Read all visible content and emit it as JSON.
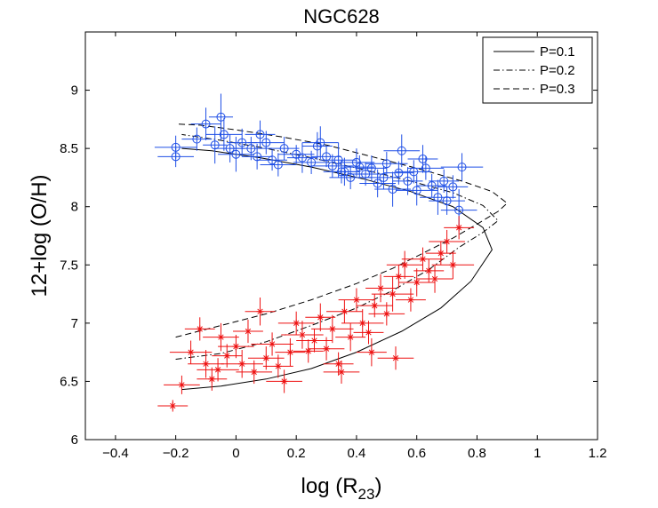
{
  "chart_data": {
    "type": "scatter",
    "title": "NGC628",
    "xlabel": "log (R",
    "xlabel_sub": "23",
    "xlabel_close": ")",
    "ylabel": "12+log (O/H)",
    "xlim": [
      -0.5,
      1.2
    ],
    "ylim": [
      6,
      9.5
    ],
    "xticks": [
      -0.4,
      -0.2,
      0,
      0.2,
      0.4,
      0.6,
      0.8,
      1,
      1.2
    ],
    "xtick_labels": [
      "−0.4",
      "−0.2",
      "0",
      "0.2",
      "0.4",
      "0.6",
      "0.8",
      "1",
      "1.2"
    ],
    "yticks": [
      6,
      6.5,
      7,
      7.5,
      8,
      8.5,
      9
    ],
    "ytick_labels": [
      "6",
      "6.5",
      "7",
      "7.5",
      "8",
      "8.5",
      "9"
    ],
    "grid": false,
    "legend_position": "top-right",
    "colors": {
      "upper": "#1f4fe6",
      "lower": "#ee1111",
      "model": "#000000"
    },
    "models": [
      {
        "name": "P=0.1",
        "dash": "solid",
        "points": [
          [
            -0.18,
            6.43
          ],
          [
            -0.05,
            6.46
          ],
          [
            0.1,
            6.52
          ],
          [
            0.25,
            6.61
          ],
          [
            0.4,
            6.75
          ],
          [
            0.55,
            6.93
          ],
          [
            0.68,
            7.13
          ],
          [
            0.78,
            7.36
          ],
          [
            0.85,
            7.63
          ],
          [
            0.82,
            7.82
          ],
          [
            0.72,
            8.0
          ],
          [
            0.58,
            8.13
          ],
          [
            0.42,
            8.24
          ],
          [
            0.25,
            8.34
          ],
          [
            0.08,
            8.42
          ],
          [
            -0.08,
            8.48
          ],
          [
            -0.18,
            8.5
          ]
        ]
      },
      {
        "name": "P=0.2",
        "dash": "dashdot",
        "points": [
          [
            -0.2,
            6.69
          ],
          [
            -0.05,
            6.74
          ],
          [
            0.1,
            6.84
          ],
          [
            0.25,
            6.98
          ],
          [
            0.4,
            7.13
          ],
          [
            0.52,
            7.28
          ],
          [
            0.64,
            7.46
          ],
          [
            0.74,
            7.65
          ],
          [
            0.82,
            7.78
          ],
          [
            0.87,
            7.88
          ],
          [
            0.82,
            8.01
          ],
          [
            0.72,
            8.12
          ],
          [
            0.58,
            8.22
          ],
          [
            0.42,
            8.32
          ],
          [
            0.25,
            8.42
          ],
          [
            0.1,
            8.5
          ],
          [
            -0.05,
            8.57
          ],
          [
            -0.18,
            8.62
          ]
        ]
      },
      {
        "name": "P=0.3",
        "dash": "dashed",
        "points": [
          [
            -0.2,
            6.88
          ],
          [
            -0.05,
            6.98
          ],
          [
            0.1,
            7.08
          ],
          [
            0.25,
            7.2
          ],
          [
            0.4,
            7.34
          ],
          [
            0.52,
            7.47
          ],
          [
            0.62,
            7.6
          ],
          [
            0.72,
            7.73
          ],
          [
            0.8,
            7.85
          ],
          [
            0.87,
            7.96
          ],
          [
            0.9,
            8.03
          ],
          [
            0.85,
            8.13
          ],
          [
            0.75,
            8.22
          ],
          [
            0.6,
            8.33
          ],
          [
            0.45,
            8.43
          ],
          [
            0.3,
            8.53
          ],
          [
            0.15,
            8.6
          ],
          [
            0.0,
            8.66
          ],
          [
            -0.12,
            8.7
          ],
          [
            -0.2,
            8.71
          ]
        ]
      }
    ],
    "upper_series": [
      [
        -0.2,
        8.43,
        0.06,
        0.09
      ],
      [
        -0.2,
        8.51,
        0.07,
        0.1
      ],
      [
        -0.13,
        8.58,
        0.05,
        0.1
      ],
      [
        -0.1,
        8.71,
        0.05,
        0.14
      ],
      [
        -0.07,
        8.53,
        0.04,
        0.16
      ],
      [
        -0.05,
        8.77,
        0.04,
        0.2
      ],
      [
        -0.04,
        8.62,
        0.06,
        0.14
      ],
      [
        -0.02,
        8.5,
        0.05,
        0.12
      ],
      [
        0.0,
        8.45,
        0.06,
        0.15
      ],
      [
        0.02,
        8.55,
        0.05,
        0.12
      ],
      [
        0.05,
        8.5,
        0.07,
        0.1
      ],
      [
        0.07,
        8.43,
        0.05,
        0.11
      ],
      [
        0.08,
        8.62,
        0.05,
        0.12
      ],
      [
        0.1,
        8.55,
        0.06,
        0.1
      ],
      [
        0.12,
        8.4,
        0.05,
        0.09
      ],
      [
        0.14,
        8.36,
        0.06,
        0.1
      ],
      [
        0.16,
        8.5,
        0.05,
        0.1
      ],
      [
        0.2,
        8.45,
        0.06,
        0.08
      ],
      [
        0.22,
        8.42,
        0.05,
        0.13
      ],
      [
        0.25,
        8.38,
        0.06,
        0.1
      ],
      [
        0.27,
        8.52,
        0.05,
        0.12
      ],
      [
        0.28,
        8.55,
        0.06,
        0.14
      ],
      [
        0.3,
        8.43,
        0.05,
        0.09
      ],
      [
        0.32,
        8.35,
        0.07,
        0.1
      ],
      [
        0.34,
        8.4,
        0.06,
        0.15
      ],
      [
        0.36,
        8.3,
        0.05,
        0.12
      ],
      [
        0.38,
        8.25,
        0.07,
        0.1
      ],
      [
        0.4,
        8.38,
        0.06,
        0.12
      ],
      [
        0.41,
        8.34,
        0.05,
        0.1
      ],
      [
        0.43,
        8.28,
        0.06,
        0.1
      ],
      [
        0.45,
        8.33,
        0.05,
        0.11
      ],
      [
        0.47,
        8.2,
        0.06,
        0.12
      ],
      [
        0.49,
        8.25,
        0.05,
        0.1
      ],
      [
        0.5,
        8.37,
        0.07,
        0.1
      ],
      [
        0.52,
        8.15,
        0.06,
        0.15
      ],
      [
        0.54,
        8.29,
        0.05,
        0.1
      ],
      [
        0.55,
        8.48,
        0.06,
        0.14
      ],
      [
        0.57,
        8.22,
        0.05,
        0.12
      ],
      [
        0.59,
        8.3,
        0.06,
        0.1
      ],
      [
        0.6,
        8.14,
        0.07,
        0.13
      ],
      [
        0.62,
        8.41,
        0.05,
        0.12
      ],
      [
        0.63,
        8.33,
        0.06,
        0.1
      ],
      [
        0.65,
        8.18,
        0.05,
        0.1
      ],
      [
        0.67,
        8.08,
        0.06,
        0.15
      ],
      [
        0.69,
        8.22,
        0.05,
        0.1
      ],
      [
        0.7,
        8.05,
        0.06,
        0.12
      ],
      [
        0.72,
        8.17,
        0.05,
        0.1
      ],
      [
        0.74,
        7.97,
        0.06,
        0.18
      ],
      [
        0.75,
        8.34,
        0.07,
        0.12
      ],
      [
        0.35,
        8.3,
        0.06,
        0.1
      ]
    ],
    "lower_series": [
      [
        -0.21,
        6.29,
        0.05,
        0.05
      ],
      [
        -0.18,
        6.47,
        0.06,
        0.08
      ],
      [
        -0.15,
        6.75,
        0.07,
        0.1
      ],
      [
        -0.12,
        6.95,
        0.05,
        0.1
      ],
      [
        -0.1,
        6.65,
        0.06,
        0.12
      ],
      [
        -0.08,
        6.52,
        0.05,
        0.1
      ],
      [
        -0.06,
        6.6,
        0.07,
        0.1
      ],
      [
        -0.05,
        6.88,
        0.06,
        0.12
      ],
      [
        -0.03,
        6.72,
        0.05,
        0.1
      ],
      [
        0.0,
        6.8,
        0.06,
        0.1
      ],
      [
        0.02,
        6.65,
        0.07,
        0.12
      ],
      [
        0.04,
        6.93,
        0.05,
        0.1
      ],
      [
        0.06,
        6.58,
        0.06,
        0.1
      ],
      [
        0.08,
        7.1,
        0.05,
        0.12
      ],
      [
        0.1,
        6.7,
        0.06,
        0.1
      ],
      [
        0.12,
        6.82,
        0.07,
        0.1
      ],
      [
        0.14,
        6.63,
        0.05,
        0.1
      ],
      [
        0.16,
        6.5,
        0.06,
        0.1
      ],
      [
        0.18,
        6.75,
        0.05,
        0.12
      ],
      [
        0.2,
        7.0,
        0.06,
        0.1
      ],
      [
        0.22,
        6.9,
        0.07,
        0.12
      ],
      [
        0.24,
        6.76,
        0.05,
        0.1
      ],
      [
        0.26,
        6.85,
        0.06,
        0.1
      ],
      [
        0.28,
        7.05,
        0.05,
        0.12
      ],
      [
        0.3,
        6.78,
        0.06,
        0.1
      ],
      [
        0.32,
        6.95,
        0.07,
        0.12
      ],
      [
        0.34,
        6.65,
        0.05,
        0.1
      ],
      [
        0.36,
        7.1,
        0.06,
        0.1
      ],
      [
        0.38,
        6.88,
        0.05,
        0.12
      ],
      [
        0.4,
        7.2,
        0.06,
        0.1
      ],
      [
        0.42,
        7.0,
        0.07,
        0.12
      ],
      [
        0.44,
        6.92,
        0.05,
        0.1
      ],
      [
        0.46,
        7.15,
        0.06,
        0.1
      ],
      [
        0.48,
        7.3,
        0.05,
        0.12
      ],
      [
        0.5,
        7.08,
        0.06,
        0.1
      ],
      [
        0.52,
        7.25,
        0.07,
        0.15
      ],
      [
        0.54,
        7.4,
        0.05,
        0.1
      ],
      [
        0.56,
        7.5,
        0.06,
        0.12
      ],
      [
        0.58,
        7.2,
        0.05,
        0.1
      ],
      [
        0.6,
        7.35,
        0.06,
        0.12
      ],
      [
        0.62,
        7.55,
        0.07,
        0.1
      ],
      [
        0.64,
        7.45,
        0.05,
        0.1
      ],
      [
        0.66,
        7.38,
        0.06,
        0.12
      ],
      [
        0.68,
        7.6,
        0.05,
        0.1
      ],
      [
        0.7,
        7.7,
        0.06,
        0.1
      ],
      [
        0.72,
        7.5,
        0.07,
        0.12
      ],
      [
        0.74,
        7.82,
        0.05,
        0.1
      ],
      [
        0.35,
        6.58,
        0.06,
        0.1
      ],
      [
        0.45,
        6.75,
        0.05,
        0.12
      ],
      [
        0.53,
        6.7,
        0.06,
        0.1
      ]
    ]
  }
}
